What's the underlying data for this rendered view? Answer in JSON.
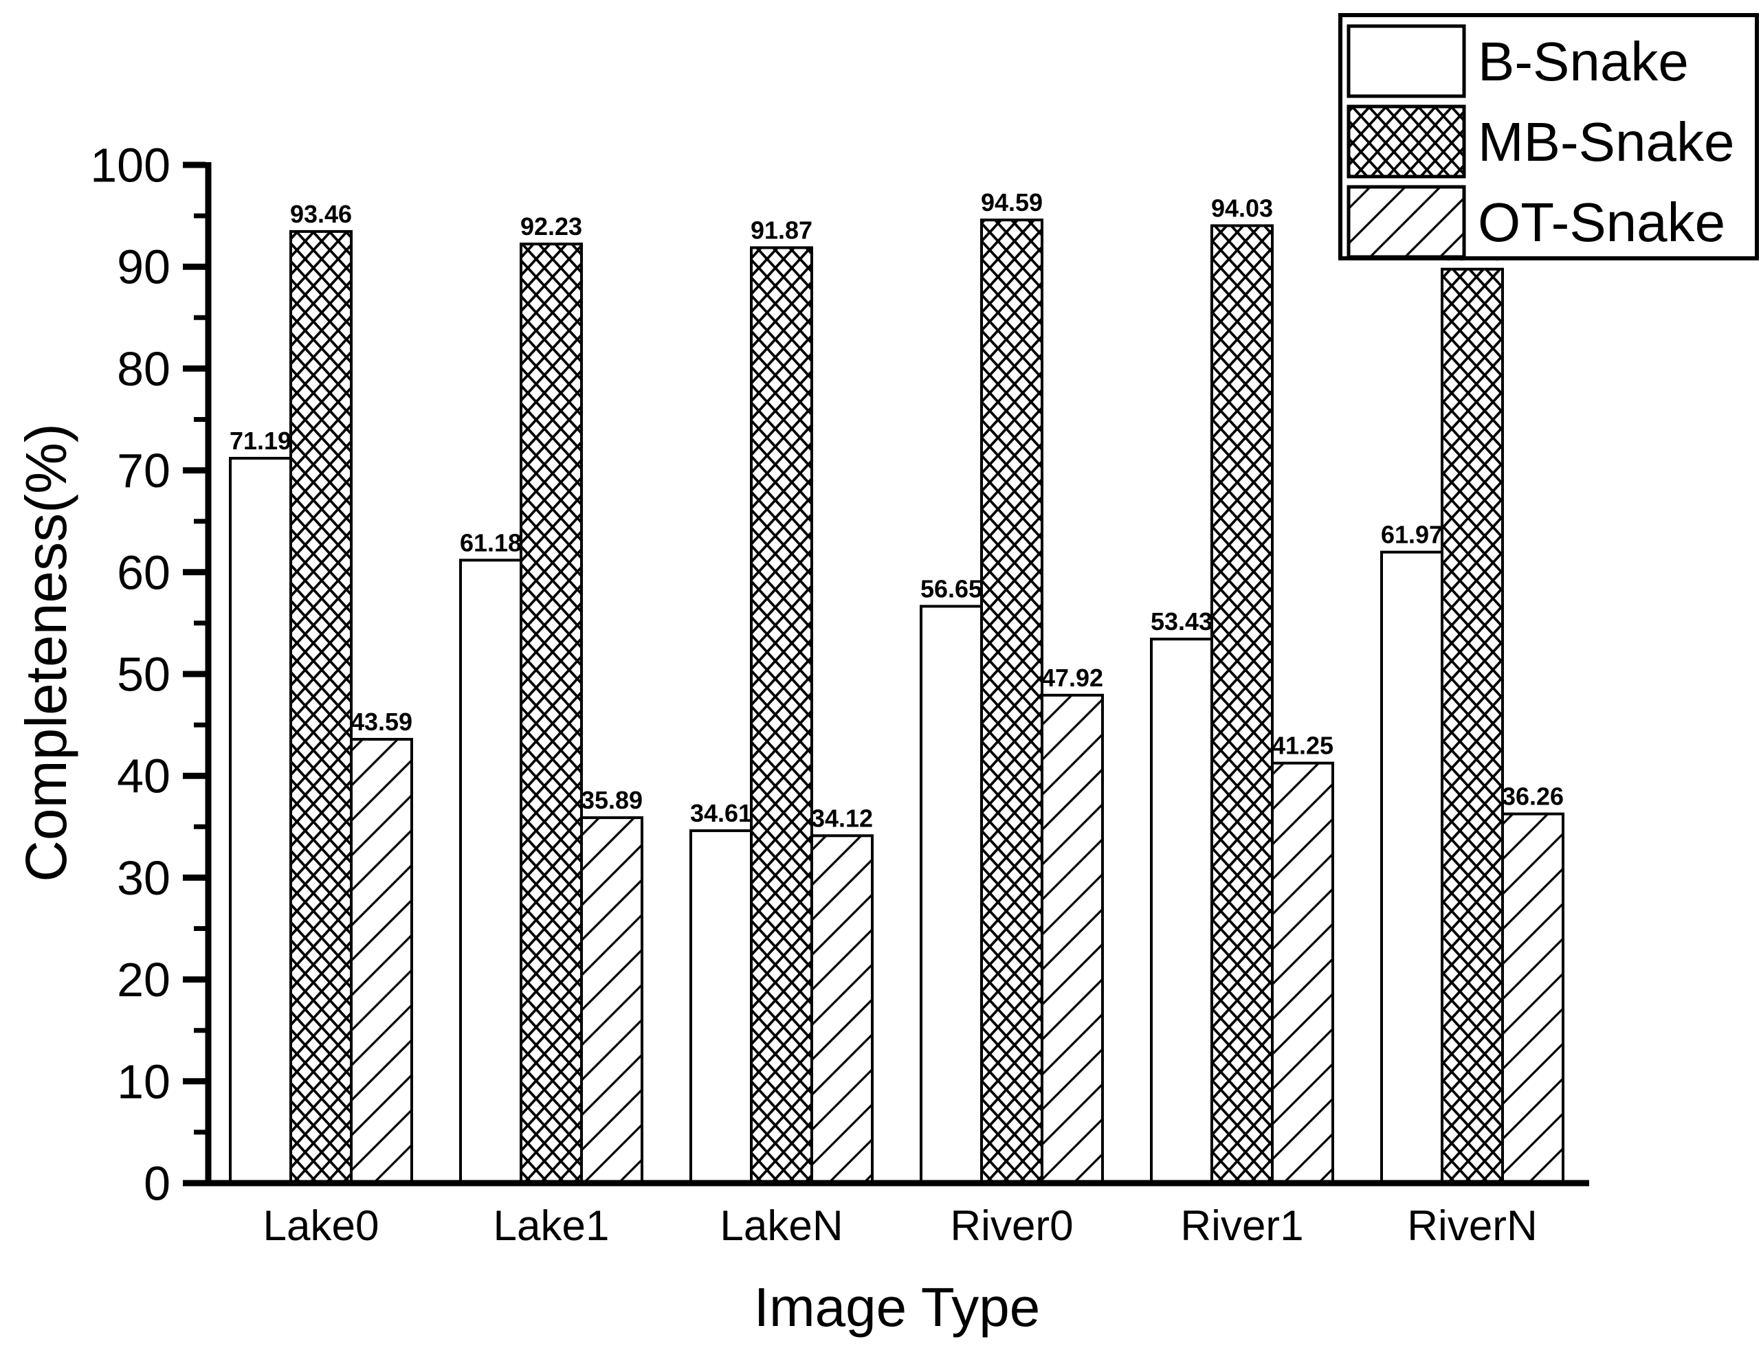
{
  "chart_data": {
    "type": "bar",
    "title": "",
    "xlabel": "Image Type",
    "ylabel": "Completeness(%)",
    "ylim": [
      0,
      100
    ],
    "y_major_step": 10,
    "y_minor_step": 5,
    "grid": false,
    "legend_position": "top-right",
    "categories": [
      "Lake0",
      "Lake1",
      "LakeN",
      "River0",
      "River1",
      "RiverN"
    ],
    "series": [
      {
        "name": "B-Snake",
        "pattern": "solid-white",
        "values": [
          71.19,
          61.18,
          34.61,
          56.65,
          53.43,
          61.97
        ]
      },
      {
        "name": "MB-Snake",
        "pattern": "crosshatch",
        "values": [
          93.46,
          92.23,
          91.87,
          94.59,
          94.03,
          89.76
        ]
      },
      {
        "name": "OT-Snake",
        "pattern": "diagonal",
        "values": [
          43.59,
          35.89,
          34.12,
          47.92,
          41.25,
          36.26
        ]
      }
    ],
    "colors": {
      "bar_outline": "#000000",
      "hatch": "#000000",
      "background": "#ffffff",
      "text": "#000000"
    }
  }
}
